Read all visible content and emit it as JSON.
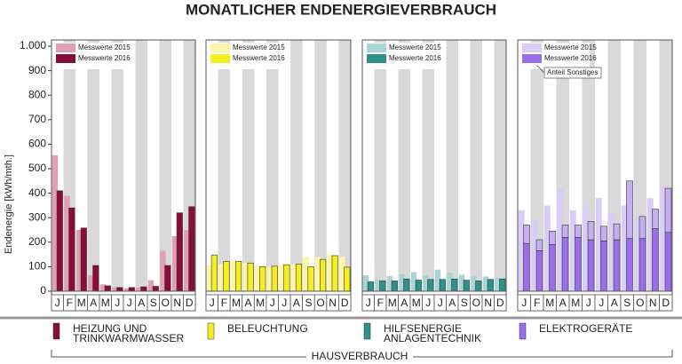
{
  "title": "MONATLICHER ENDENERGIEVERBRAUCH",
  "y_label": "Endenergie [kWh/mth.]",
  "ylim": [
    0,
    1000
  ],
  "yticks": [
    0,
    100,
    200,
    300,
    400,
    500,
    600,
    700,
    800,
    900,
    {
      "value": 1000,
      "label": "1.000"
    }
  ],
  "footer": "HAUSVERBRAUCH",
  "chart_data": [
    {
      "type": "bar",
      "caption": [
        "HEIZUNG UND",
        "TRINKWARMWASSER"
      ],
      "caption_color": "#8b0b3a",
      "categories": [
        "J",
        "F",
        "M",
        "A",
        "M",
        "J",
        "J",
        "A",
        "S",
        "O",
        "N",
        "D"
      ],
      "series": [
        {
          "name": "Messwerte 2015",
          "color": "#e0a0b4",
          "values": [
            555,
            390,
            250,
            65,
            28,
            15,
            12,
            15,
            45,
            165,
            225,
            250
          ]
        },
        {
          "name": "Messwerte 2016",
          "color": "#8b0b3a",
          "values": [
            410,
            340,
            258,
            105,
            22,
            15,
            15,
            18,
            20,
            105,
            320,
            345
          ]
        }
      ]
    },
    {
      "type": "bar",
      "caption": [
        "BELEUCHTUNG"
      ],
      "caption_color": "#f5ee20",
      "categories": [
        "J",
        "F",
        "M",
        "A",
        "M",
        "J",
        "J",
        "A",
        "S",
        "O",
        "N",
        "D"
      ],
      "series": [
        {
          "name": "Messwerte 2015",
          "color": "#fcf7a8",
          "values": [
            105,
            110,
            120,
            115,
            105,
            100,
            110,
            110,
            140,
            140,
            150,
            140
          ]
        },
        {
          "name": "Messwerte 2016",
          "color": "#f5ee20",
          "values": [
            148,
            122,
            122,
            115,
            100,
            102,
            108,
            110,
            100,
            130,
            145,
            98
          ]
        }
      ]
    },
    {
      "type": "bar",
      "caption": [
        "HILFSENERGIE",
        "ANLAGENTECHNIK"
      ],
      "caption_color": "#2e928c",
      "categories": [
        "J",
        "F",
        "M",
        "A",
        "M",
        "J",
        "J",
        "A",
        "S",
        "O",
        "N",
        "D"
      ],
      "series": [
        {
          "name": "Messwerte 2015",
          "color": "#a9d6d4",
          "values": [
            65,
            48,
            62,
            70,
            78,
            65,
            88,
            75,
            68,
            62,
            60,
            55
          ]
        },
        {
          "name": "Messwerte 2016",
          "color": "#2e928c",
          "values": [
            38,
            42,
            42,
            50,
            45,
            48,
            48,
            50,
            45,
            42,
            48,
            50
          ]
        }
      ]
    },
    {
      "type": "bar",
      "caption": [
        "ELEKTROGERÄTE"
      ],
      "caption_color": "#9a6ee8",
      "categories": [
        "J",
        "F",
        "M",
        "A",
        "M",
        "J",
        "J",
        "A",
        "S",
        "O",
        "N",
        "D"
      ],
      "series": [
        {
          "name": "Messwerte 2015",
          "color": "#d8cdf5",
          "values": [
            330,
            290,
            350,
            420,
            330,
            350,
            380,
            320,
            350,
            300,
            380,
            430
          ]
        },
        {
          "name": "Messwerte 2016",
          "color": "#9a6ee8",
          "values": [
            195,
            165,
            190,
            220,
            220,
            210,
            205,
            210,
            215,
            215,
            255,
            240
          ]
        },
        {
          "name": "Anteil Sonstiges",
          "color": "#c4b0f0",
          "stacked": true,
          "values": [
            75,
            45,
            55,
            50,
            50,
            75,
            60,
            65,
            235,
            90,
            80,
            180
          ]
        }
      ]
    }
  ]
}
